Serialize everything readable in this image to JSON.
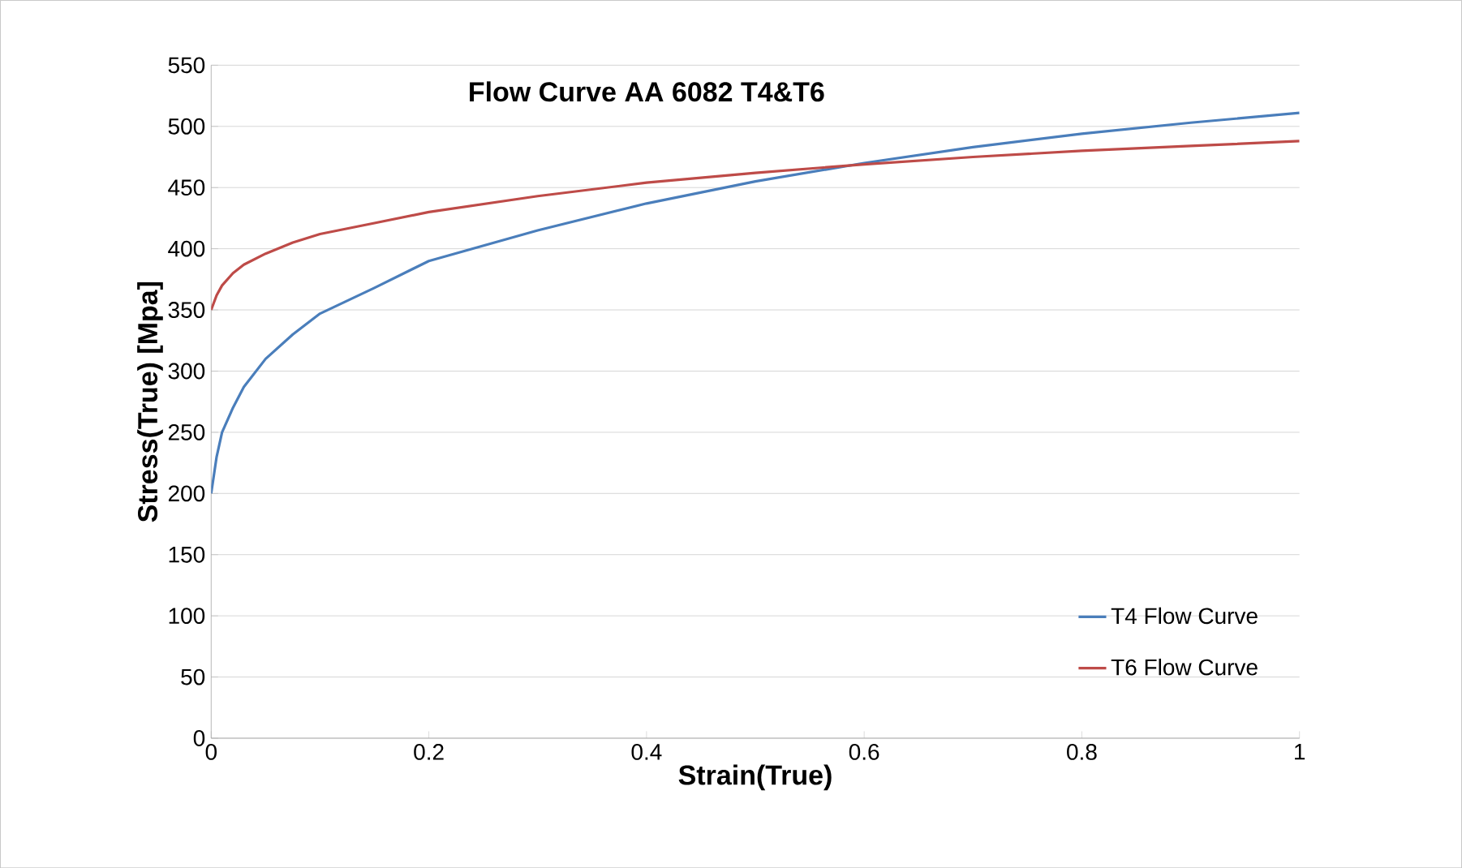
{
  "chart_data": {
    "type": "line",
    "title": "Flow Curve AA 6082 T4&T6",
    "xlabel": "Strain(True)",
    "ylabel": "Stress(True) [Mpa]",
    "xlim": [
      0,
      1
    ],
    "xticks": [
      0,
      0.2,
      0.4,
      0.6,
      0.8,
      1
    ],
    "ylim": [
      0,
      550
    ],
    "yticks": [
      0,
      50,
      100,
      150,
      200,
      250,
      300,
      350,
      400,
      450,
      500,
      550
    ],
    "grid": "y",
    "legend": "bottom right",
    "marker": "none",
    "line_style": "solid",
    "series": [
      {
        "name": "T4 Flow Curve",
        "color": "#4a7ebb",
        "x": [
          0,
          0.005,
          0.01,
          0.02,
          0.03,
          0.05,
          0.075,
          0.1,
          0.15,
          0.2,
          0.3,
          0.4,
          0.5,
          0.6,
          0.7,
          0.8,
          0.9,
          1.0
        ],
        "values": [
          200,
          230,
          250,
          270,
          287,
          310,
          330,
          347,
          368,
          390,
          415,
          437,
          455,
          470,
          483,
          494,
          503,
          511
        ]
      },
      {
        "name": "T6 Flow Curve",
        "color": "#be4b48",
        "x": [
          0,
          0.005,
          0.01,
          0.02,
          0.03,
          0.05,
          0.075,
          0.1,
          0.15,
          0.2,
          0.3,
          0.4,
          0.5,
          0.6,
          0.7,
          0.8,
          0.9,
          1.0
        ],
        "values": [
          350,
          362,
          370,
          380,
          387,
          396,
          405,
          412,
          421,
          430,
          443,
          454,
          462,
          469,
          475,
          480,
          484,
          488
        ]
      }
    ]
  }
}
